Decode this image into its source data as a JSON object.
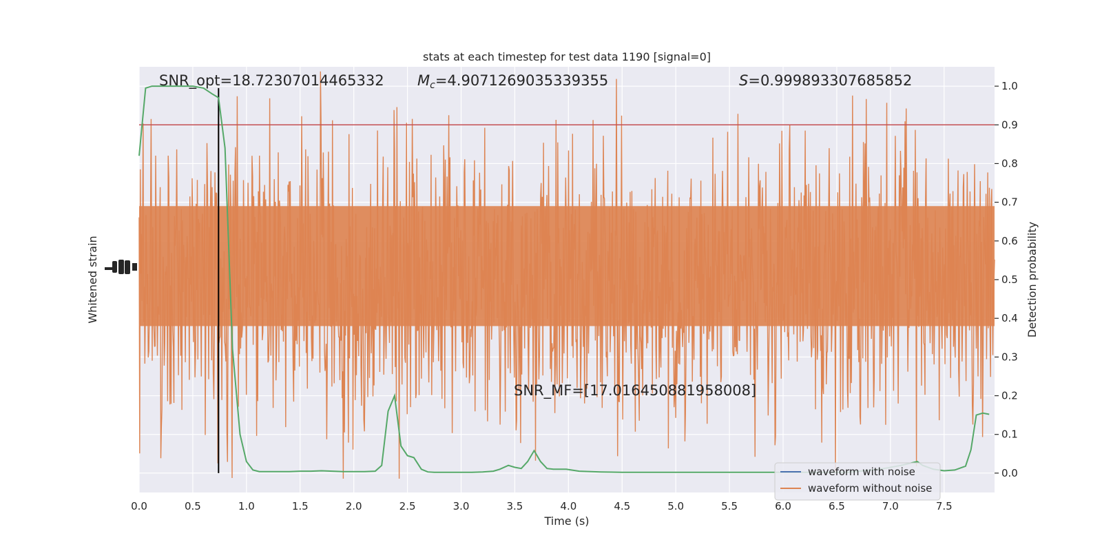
{
  "chart_data": {
    "type": "line",
    "title": "stats at each timestep for test data 1190 [signal=0]",
    "xlabel": "Time (s)",
    "ylabel_left": "Whitened strain",
    "ylabel_right": "Detection probability",
    "xlim": [
      0.0,
      7.97
    ],
    "ylim_right": [
      -0.05,
      1.05
    ],
    "x_ticks": [
      "0.0",
      "0.5",
      "1.0",
      "1.5",
      "2.0",
      "2.5",
      "3.0",
      "3.5",
      "4.0",
      "4.5",
      "5.0",
      "5.5",
      "6.0",
      "6.5",
      "7.0",
      "7.5"
    ],
    "y_ticks_right": [
      "0.0",
      "0.1",
      "0.2",
      "0.3",
      "0.4",
      "0.5",
      "0.6",
      "0.7",
      "0.8",
      "0.9",
      "1.0"
    ],
    "grid": true,
    "threshold": 0.9,
    "threshold_color": "#c44e52",
    "merger_time": 0.74,
    "annotations": {
      "snr_opt": "SNR_opt=18.72307014465332",
      "mc_symbol": "M",
      "mc_sub": "c",
      "mc_value": "=4.9071269035339355",
      "s_symbol": "S",
      "s_value": "=0.999893307685852",
      "snr_mf": "SNR_MF=[17.016450881958008]"
    },
    "legend": {
      "placement": "lower-right",
      "entries": [
        {
          "label": "waveform with noise",
          "color": "#4c72b0"
        },
        {
          "label": "waveform without noise",
          "color": "#dd8452"
        }
      ]
    },
    "series": [
      {
        "color": "#55a868",
        "x": [
          0.0,
          0.06,
          0.12,
          0.2,
          0.3,
          0.4,
          0.5,
          0.6,
          0.68,
          0.74,
          0.8,
          0.87,
          0.94,
          1.0,
          1.06,
          1.12,
          1.2,
          1.3,
          1.4,
          1.5,
          1.6,
          1.7,
          1.8,
          1.9,
          2.0,
          2.1,
          2.2,
          2.26,
          2.32,
          2.38,
          2.44,
          2.5,
          2.56,
          2.63,
          2.69,
          2.75,
          2.8,
          2.9,
          3.0,
          3.1,
          3.2,
          3.3,
          3.36,
          3.44,
          3.5,
          3.56,
          3.62,
          3.68,
          3.74,
          3.8,
          3.86,
          3.92,
          3.98,
          4.1,
          4.3,
          4.5,
          4.7,
          5.0,
          5.3,
          5.6,
          6.0,
          6.3,
          6.6,
          6.9,
          7.1,
          7.25,
          7.3,
          7.4,
          7.5,
          7.6,
          7.7,
          7.75,
          7.8,
          7.86,
          7.92
        ],
        "values": [
          0.82,
          0.995,
          1.0,
          1.0,
          1.0,
          1.0,
          1.0,
          0.995,
          0.98,
          0.97,
          0.84,
          0.32,
          0.1,
          0.03,
          0.008,
          0.004,
          0.004,
          0.004,
          0.004,
          0.005,
          0.005,
          0.006,
          0.005,
          0.004,
          0.004,
          0.004,
          0.005,
          0.02,
          0.16,
          0.2,
          0.07,
          0.045,
          0.04,
          0.01,
          0.003,
          0.002,
          0.002,
          0.002,
          0.002,
          0.002,
          0.003,
          0.005,
          0.01,
          0.02,
          0.015,
          0.012,
          0.03,
          0.058,
          0.03,
          0.012,
          0.01,
          0.01,
          0.01,
          0.005,
          0.003,
          0.002,
          0.002,
          0.002,
          0.002,
          0.002,
          0.002,
          0.002,
          0.002,
          0.01,
          0.02,
          0.03,
          0.02,
          0.01,
          0.006,
          0.008,
          0.018,
          0.06,
          0.15,
          0.155,
          0.152
        ]
      }
    ]
  }
}
